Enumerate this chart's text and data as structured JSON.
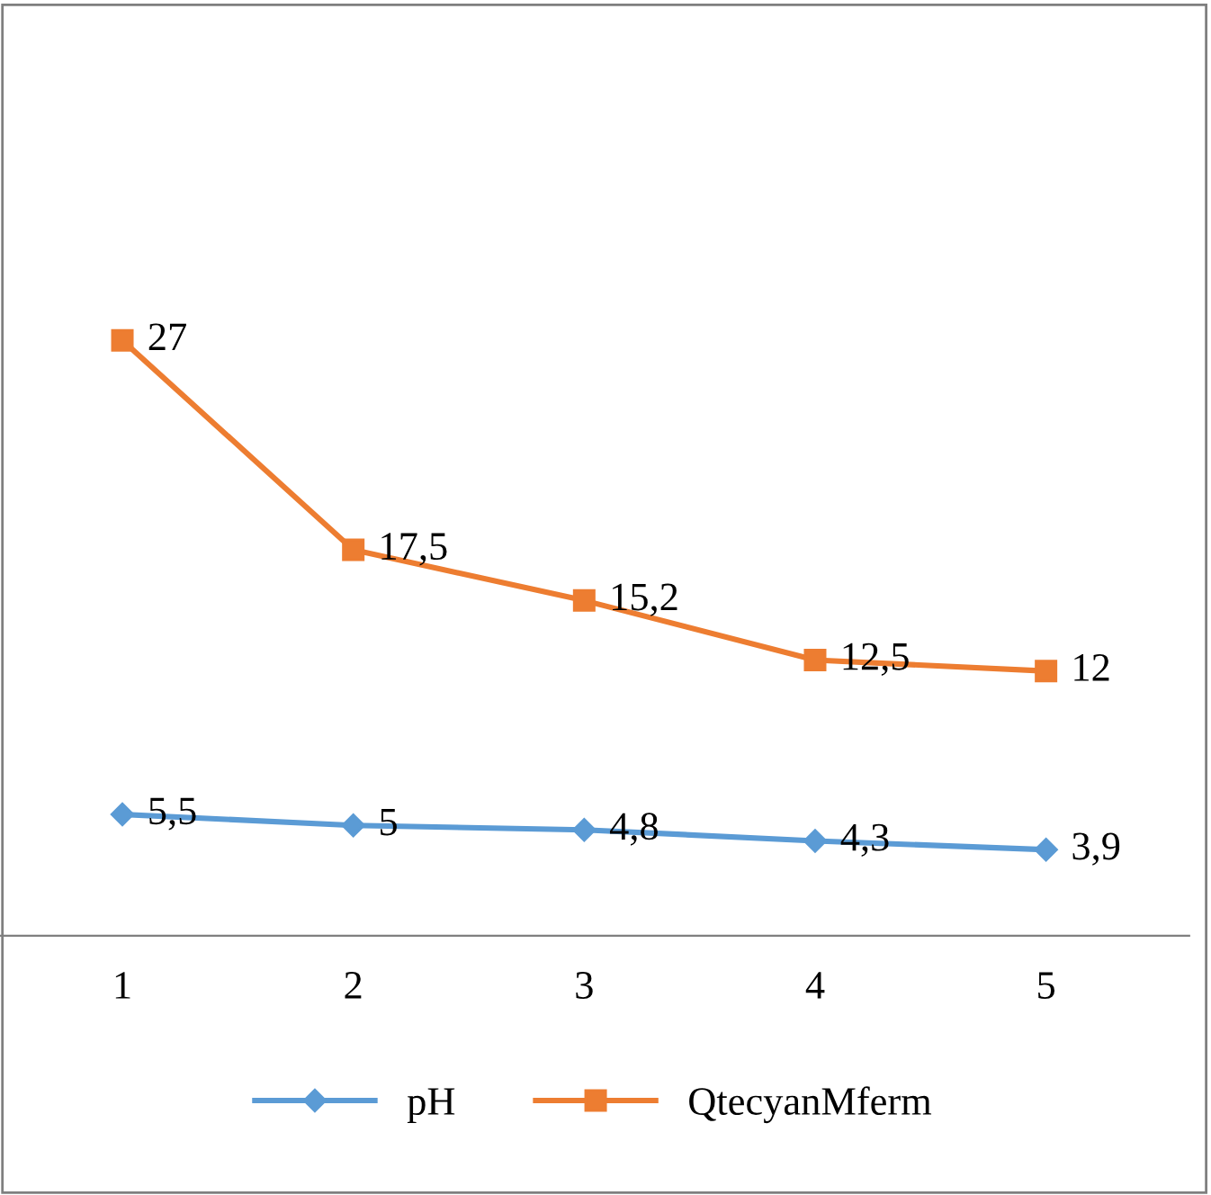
{
  "chart_data": {
    "type": "line",
    "categories": [
      "1",
      "2",
      "3",
      "4",
      "5"
    ],
    "ylim": [
      0,
      42
    ],
    "legend": "bottom",
    "grid": false,
    "series": [
      {
        "name": "pH",
        "color": "#5b9bd5",
        "marker": "diamond",
        "values": [
          5.5,
          5,
          4.8,
          4.3,
          3.9
        ],
        "value_labels": [
          "5,5",
          "5",
          "4,8",
          "4,3",
          "3,9"
        ]
      },
      {
        "name": "QtecyanMferm",
        "color": "#ed7d31",
        "marker": "square",
        "values": [
          27,
          17.5,
          15.2,
          12.5,
          12
        ],
        "value_labels": [
          "27",
          "17,5",
          "15,2",
          "12,5",
          "12"
        ]
      }
    ]
  }
}
